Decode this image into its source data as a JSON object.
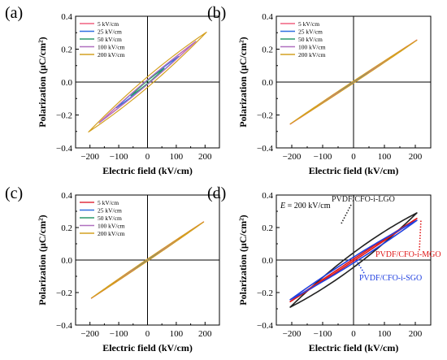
{
  "chart_data": [
    {
      "type": "line",
      "panel_label": "(a)",
      "xlabel": "Electric field (kV/cm)",
      "ylabel": "Polarization (μC/cm²)",
      "xlim": [
        -250,
        250
      ],
      "ylim": [
        -0.4,
        0.4
      ],
      "xticks": [
        "−200",
        "−100",
        "0",
        "100",
        "200"
      ],
      "yticks": [
        "−0.4",
        "−0.2",
        "0.0",
        "0.2",
        "0.4"
      ],
      "legend_position": "top-left",
      "series": [
        {
          "name": "5 kV/cm",
          "color": "#f06080",
          "emax": 165,
          "pmax": 0.255,
          "pr": 0.013
        },
        {
          "name": "25 kV/cm",
          "color": "#3070e0",
          "emax": 108,
          "pmax": 0.168,
          "pr": 0.012
        },
        {
          "name": "50 kV/cm",
          "color": "#2a9a6a",
          "emax": 58,
          "pmax": 0.092,
          "pr": 0.008
        },
        {
          "name": "100 kV/cm",
          "color": "#b070c0",
          "emax": 168,
          "pmax": 0.262,
          "pr": 0.014
        },
        {
          "name": "200 kV/cm",
          "color": "#d4a020",
          "emax": 205,
          "pmax": 0.335,
          "pr": 0.032
        }
      ]
    },
    {
      "type": "line",
      "panel_label": "(b)",
      "xlabel": "Electric field (kV/cm)",
      "ylabel": "Polarization (μC/cm²)",
      "xlim": [
        -250,
        250
      ],
      "ylim": [
        -0.4,
        0.4
      ],
      "xticks": [
        "−200",
        "−100",
        "0",
        "100",
        "200"
      ],
      "yticks": [
        "−0.4",
        "−0.2",
        "0.0",
        "0.2",
        "0.4"
      ],
      "legend_position": "top-left",
      "series": [
        {
          "name": "5 kV/cm",
          "color": "#f06080",
          "emax": 205,
          "pmax": 0.26,
          "pr": 0.004
        },
        {
          "name": "25 kV/cm",
          "color": "#3070e0",
          "emax": 50,
          "pmax": 0.065,
          "pr": 0.004
        },
        {
          "name": "50 kV/cm",
          "color": "#2a9a6a",
          "emax": 50,
          "pmax": 0.065,
          "pr": 0.004
        },
        {
          "name": "100 kV/cm",
          "color": "#b070c0",
          "emax": 110,
          "pmax": 0.14,
          "pr": 0.005
        },
        {
          "name": "200 kV/cm",
          "color": "#d4a020",
          "emax": 205,
          "pmax": 0.26,
          "pr": 0.006
        }
      ]
    },
    {
      "type": "line",
      "panel_label": "(c)",
      "xlabel": "Electric field (kV/cm)",
      "ylabel": "Polarization (μC/cm²)",
      "xlim": [
        -250,
        250
      ],
      "ylim": [
        -0.4,
        0.4
      ],
      "xticks": [
        "−200",
        "−100",
        "0",
        "100",
        "200"
      ],
      "yticks": [
        "−0.4",
        "−0.2",
        "0.0",
        "0.2",
        "0.4"
      ],
      "legend_position": "top-left",
      "series": [
        {
          "name": "5 kV/cm",
          "color": "#e03040",
          "emax": 195,
          "pmax": 0.24,
          "pr": 0.005
        },
        {
          "name": "25 kV/cm",
          "color": "#3070e0",
          "emax": 52,
          "pmax": 0.064,
          "pr": 0.004
        },
        {
          "name": "50 kV/cm",
          "color": "#2a9a6a",
          "emax": 52,
          "pmax": 0.064,
          "pr": 0.004
        },
        {
          "name": "100 kV/cm",
          "color": "#b070c0",
          "emax": 105,
          "pmax": 0.13,
          "pr": 0.005
        },
        {
          "name": "200 kV/cm",
          "color": "#d4a020",
          "emax": 195,
          "pmax": 0.24,
          "pr": 0.006
        }
      ]
    },
    {
      "type": "line",
      "panel_label": "(d)",
      "xlabel": "Electric field (kV/cm)",
      "ylabel": "Polarization (μC/cm²)",
      "xlim": [
        -250,
        250
      ],
      "ylim": [
        -0.4,
        0.4
      ],
      "xticks": [
        "−200",
        "−100",
        "0",
        "100",
        "200"
      ],
      "yticks": [
        "−0.4",
        "−0.2",
        "0.0",
        "0.2",
        "0.4"
      ],
      "condition_prefix": "E",
      "condition_value": " = 200 kV/cm",
      "series": [
        {
          "name": "PVDF/CFO-i-LGO",
          "color": "#222222",
          "emax": 205,
          "pmax": 0.335,
          "pr": 0.045
        },
        {
          "name": "PVDF/CFO-i-MGO",
          "color": "#e01818",
          "emax": 205,
          "pmax": 0.262,
          "pr": 0.006
        },
        {
          "name": "PVDF/CFO-i-SGO",
          "color": "#2040e0",
          "emax": 205,
          "pmax": 0.262,
          "pr": 0.018
        }
      ]
    }
  ]
}
